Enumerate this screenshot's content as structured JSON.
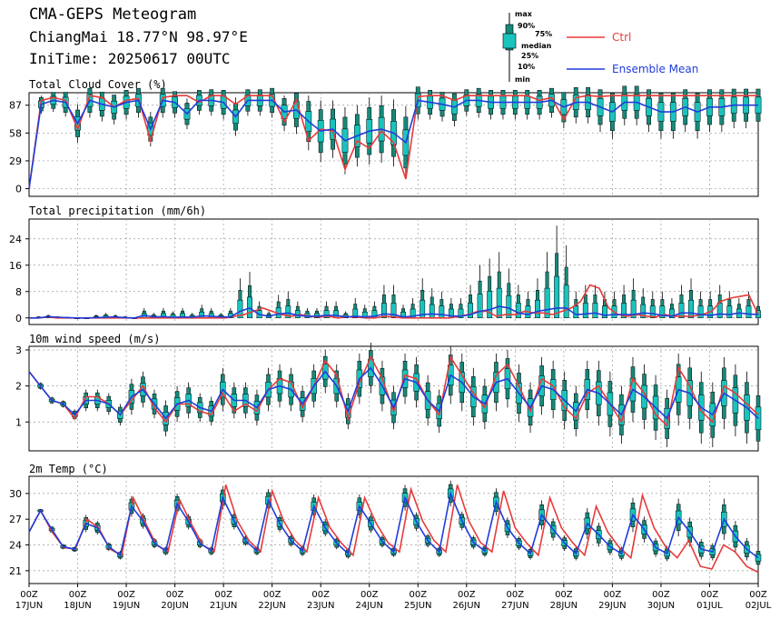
{
  "header": {
    "title": "CMA-GEPS Meteogram",
    "location": "ChiangMai 18.77°N 98.97°E",
    "init_time": "IniTime: 20250617 00UTC"
  },
  "legend": {
    "box_labels": [
      "max",
      "90%",
      "75%",
      "median",
      "25%",
      "10%",
      "min"
    ],
    "ctrl": "Ctrl",
    "mean": "Ensemble Mean"
  },
  "colors": {
    "ctrl": "#e83a3a",
    "mean": "#1f3ddb",
    "box": "#168a7a",
    "box_inner": "#19c4be"
  },
  "x_ticks": [
    {
      "top": "00Z",
      "bottom": "17JUN"
    },
    {
      "top": "00Z",
      "bottom": "18JUN"
    },
    {
      "top": "00Z",
      "bottom": "19JUN"
    },
    {
      "top": "00Z",
      "bottom": "20JUN"
    },
    {
      "top": "00Z",
      "bottom": "21JUN"
    },
    {
      "top": "00Z",
      "bottom": "22JUN"
    },
    {
      "top": "00Z",
      "bottom": "23JUN"
    },
    {
      "top": "00Z",
      "bottom": "24JUN"
    },
    {
      "top": "00Z",
      "bottom": "25JUN"
    },
    {
      "top": "00Z",
      "bottom": "26JUN"
    },
    {
      "top": "00Z",
      "bottom": "27JUN"
    },
    {
      "top": "00Z",
      "bottom": "28JUN"
    },
    {
      "top": "00Z",
      "bottom": "29JUN"
    },
    {
      "top": "00Z",
      "bottom": "30JUN"
    },
    {
      "top": "00Z",
      "bottom": "01JUL"
    },
    {
      "top": "00Z",
      "bottom": "02JUL"
    }
  ],
  "chart_data": [
    {
      "type": "box-line",
      "title": "Total Cloud Cover (%)",
      "ylim": [
        -8,
        100
      ],
      "yticks": [
        0,
        29,
        58,
        87
      ],
      "x_unit": "hours since 17JUN 00Z (6-hourly steps)",
      "ctrl": [
        0,
        92,
        95,
        92,
        62,
        97,
        95,
        85,
        92,
        94,
        50,
        95,
        97,
        97,
        90,
        97,
        97,
        88,
        97,
        97,
        97,
        70,
        92,
        50,
        62,
        60,
        20,
        50,
        42,
        60,
        48,
        10,
        96,
        97,
        97,
        92,
        97,
        97,
        97,
        97,
        97,
        97,
        92,
        95,
        72,
        95,
        97,
        96,
        97,
        97,
        97,
        97,
        97,
        97,
        97,
        97,
        97,
        97,
        97,
        97,
        97
      ],
      "mean": [
        0,
        88,
        92,
        90,
        68,
        92,
        88,
        85,
        90,
        92,
        62,
        92,
        90,
        78,
        92,
        92,
        90,
        75,
        92,
        92,
        92,
        80,
        82,
        70,
        60,
        62,
        50,
        55,
        60,
        62,
        58,
        48,
        92,
        90,
        88,
        85,
        92,
        92,
        90,
        90,
        90,
        90,
        90,
        92,
        85,
        90,
        90,
        85,
        80,
        90,
        90,
        85,
        80,
        80,
        85,
        80,
        85,
        85,
        87,
        87,
        87
      ],
      "median": [
        0,
        90,
        93,
        92,
        70,
        92,
        90,
        87,
        90,
        93,
        65,
        93,
        92,
        80,
        93,
        93,
        91,
        78,
        93,
        93,
        92,
        82,
        83,
        72,
        62,
        63,
        52,
        56,
        62,
        63,
        60,
        50,
        93,
        91,
        89,
        86,
        93,
        93,
        91,
        91,
        91,
        91,
        91,
        93,
        86,
        91,
        91,
        87,
        82,
        91,
        91,
        86,
        82,
        82,
        86,
        82,
        86,
        86,
        88,
        88,
        88
      ],
      "spread": [
        0,
        10,
        12,
        15,
        20,
        18,
        18,
        18,
        18,
        18,
        18,
        18,
        16,
        16,
        15,
        16,
        18,
        20,
        16,
        16,
        18,
        20,
        25,
        30,
        32,
        30,
        35,
        32,
        35,
        35,
        35,
        38,
        20,
        18,
        18,
        20,
        16,
        18,
        18,
        18,
        18,
        18,
        18,
        18,
        22,
        22,
        22,
        26,
        28,
        24,
        24,
        26,
        28,
        28,
        26,
        28,
        26,
        26,
        24,
        24,
        24
      ]
    },
    {
      "type": "box-line",
      "title": "Total precipitation (mm/6h)",
      "ylim": [
        -2,
        30
      ],
      "yticks": [
        0,
        8,
        16,
        24
      ],
      "ctrl": [
        0,
        0,
        0.3,
        0,
        0,
        0,
        0,
        0,
        0,
        0,
        0,
        0,
        0,
        0,
        0,
        0,
        0,
        0,
        0,
        0,
        0,
        0,
        0.5,
        1,
        2,
        3,
        2,
        1,
        0.5,
        1,
        0.5,
        0.3,
        0.5,
        0,
        0.3,
        0.3,
        0,
        0,
        0.5,
        0.3,
        0,
        0,
        0,
        0,
        0,
        0,
        0.5,
        1,
        2,
        2,
        0.5,
        1,
        1,
        2,
        1.5,
        1.5,
        1,
        2,
        3,
        5,
        10,
        9,
        3,
        1,
        0.5,
        1,
        0.5,
        0.3,
        1,
        0.5,
        0.5,
        0.5,
        1,
        2,
        5,
        6,
        6.5,
        7,
        1
      ],
      "mean": [
        0,
        0,
        0.4,
        0.2,
        0.1,
        0,
        0,
        0.1,
        0.2,
        0.3,
        0.1,
        0,
        0.8,
        0.3,
        0.4,
        0.2,
        0.3,
        0.2,
        0.6,
        0.5,
        0.3,
        0.3,
        2,
        3,
        1,
        0.5,
        1.2,
        1.5,
        0.8,
        0.5,
        0.5,
        0.8,
        0.8,
        0.3,
        0.5,
        0.3,
        0.5,
        1.2,
        1,
        0.3,
        0.5,
        1,
        1.2,
        1,
        0.6,
        0.5,
        1,
        2,
        2.5,
        3.5,
        3,
        1.5,
        1,
        2,
        2.5,
        3,
        3,
        1,
        1.2,
        1.5,
        0.8,
        1,
        1,
        1,
        1.5,
        1.3,
        0.8,
        0.5,
        1.5,
        1.5,
        1,
        0.8,
        1.2,
        1,
        1.5,
        1.2,
        1
      ],
      "hi": [
        0,
        0.5,
        1,
        0.5,
        0.3,
        0,
        0,
        1,
        1.5,
        1,
        0.5,
        0,
        3,
        1.5,
        3,
        2,
        3,
        1.5,
        4,
        3,
        1.5,
        3,
        12,
        14,
        5,
        2,
        7,
        8,
        5,
        3,
        3,
        5,
        5,
        2,
        6,
        4,
        5,
        10,
        10,
        4,
        6,
        12,
        9,
        8,
        6,
        6,
        10,
        16,
        18,
        20,
        15,
        10,
        8,
        12,
        20,
        28,
        22,
        8,
        10,
        10,
        8,
        8,
        10,
        12,
        9,
        8,
        8,
        6,
        10,
        12,
        8,
        8,
        10,
        8,
        6,
        8,
        5
      ],
      "max_val": [
        0,
        0.5,
        1,
        0.5,
        0.3,
        0,
        0,
        1,
        1.5,
        1,
        0.5,
        0,
        3,
        1.5,
        3,
        2,
        3,
        1.5,
        4,
        3,
        1.5,
        3,
        12,
        14,
        5,
        2,
        7,
        8,
        5,
        3,
        3,
        5,
        5,
        2,
        6,
        4,
        5,
        10,
        10,
        4,
        6,
        12,
        9,
        8,
        6,
        6,
        10,
        16,
        18,
        20,
        15,
        10,
        8,
        12,
        20,
        28,
        22,
        8,
        10,
        10,
        8,
        8,
        10,
        12,
        9,
        8,
        8,
        6,
        10,
        12,
        8,
        8,
        10,
        8,
        6,
        8,
        5
      ]
    },
    {
      "type": "box-line",
      "title": "10m wind speed (m/s)",
      "ylim": [
        0.2,
        3.1
      ],
      "yticks": [
        1,
        2,
        3
      ],
      "ctrl": [
        2.4,
        2,
        1.6,
        1.5,
        1.1,
        1.7,
        1.7,
        1.5,
        1.2,
        1.6,
        2,
        1.4,
        1.0,
        1.5,
        1.5,
        1.3,
        1.2,
        1.8,
        1.3,
        1.5,
        1.3,
        1.9,
        2.2,
        2.1,
        1.4,
        2,
        2.7,
        2.3,
        1.1,
        2.1,
        2.8,
        2.2,
        1.3,
        2.3,
        2.2,
        1.6,
        1.2,
        2.8,
        2.3,
        1.8,
        1.4,
        2.3,
        2.6,
        2.0,
        1.3,
        2.2,
        2.0,
        1.4,
        1.1,
        1.8,
        2.0,
        1.5,
        1.0,
        2.2,
        1.8,
        1.2,
        0.9,
        2.5,
        2.0,
        1.3,
        1.0,
        2.0,
        1.8,
        1.5,
        1.2
      ],
      "mean": [
        2.4,
        2,
        1.6,
        1.5,
        1.2,
        1.6,
        1.6,
        1.5,
        1.2,
        1.7,
        1.9,
        1.5,
        1.1,
        1.5,
        1.6,
        1.4,
        1.3,
        1.9,
        1.6,
        1.6,
        1.4,
        1.9,
        2.0,
        1.9,
        1.5,
        2.0,
        2.4,
        2.0,
        1.3,
        2.2,
        2.5,
        2.0,
        1.4,
        2.2,
        2.1,
        1.6,
        1.3,
        2.3,
        2.1,
        1.7,
        1.5,
        2.1,
        2.2,
        1.8,
        1.4,
        2.0,
        1.9,
        1.6,
        1.3,
        1.9,
        1.8,
        1.5,
        1.2,
        1.9,
        1.7,
        1.4,
        1.1,
        1.9,
        1.8,
        1.4,
        1.2,
        1.8,
        1.6,
        1.4,
        1.1
      ],
      "spread": [
        0,
        0.1,
        0.1,
        0.1,
        0.15,
        0.3,
        0.3,
        0.3,
        0.3,
        0.5,
        0.5,
        0.4,
        0.5,
        0.5,
        0.5,
        0.4,
        0.4,
        0.6,
        0.5,
        0.5,
        0.5,
        0.6,
        0.6,
        0.6,
        0.5,
        0.6,
        0.6,
        0.6,
        0.5,
        0.7,
        0.7,
        0.7,
        0.6,
        0.7,
        0.7,
        0.7,
        0.6,
        0.8,
        0.8,
        0.8,
        0.7,
        0.8,
        0.8,
        0.8,
        0.7,
        0.8,
        0.8,
        0.8,
        0.7,
        0.8,
        0.9,
        0.9,
        0.8,
        0.9,
        0.9,
        0.9,
        0.8,
        1.0,
        1.0,
        1.0,
        0.9,
        1.0,
        1.0,
        1.0,
        0.9
      ]
    },
    {
      "type": "box-line",
      "title": "2m Temp (°C)",
      "ylim": [
        19.5,
        32
      ],
      "yticks": [
        21,
        24,
        27,
        30
      ],
      "ctrl": [
        25.5,
        28,
        25.5,
        23.7,
        23.5,
        27,
        26,
        23.5,
        22.8,
        29.5,
        26.7,
        24,
        23.2,
        29.3,
        26.5,
        24,
        23.2,
        31,
        26.8,
        24.5,
        23.2,
        30.3,
        26.8,
        24.5,
        23.2,
        29.5,
        26,
        24.2,
        22.8,
        29.5,
        26.5,
        24.3,
        23.2,
        30.5,
        26.8,
        24.5,
        23.2,
        31,
        26.8,
        24.3,
        23.2,
        30.3,
        26,
        24.2,
        22.8,
        29.5,
        26,
        24.2,
        22.8,
        28.5,
        25.5,
        23.7,
        22.5,
        29.8,
        26,
        23.8,
        22.5,
        24.5,
        21.5,
        21.2,
        24,
        23.2,
        21.5,
        20.8
      ],
      "mean": [
        25.5,
        28,
        25.8,
        23.8,
        23.5,
        26.5,
        26,
        23.8,
        22.8,
        28.5,
        26.8,
        24.2,
        23.3,
        28.8,
        26.7,
        24.2,
        23.3,
        29.5,
        26.8,
        24.5,
        23.3,
        29.2,
        26.5,
        24.5,
        23.3,
        28.5,
        26,
        24.2,
        23,
        28.5,
        26.5,
        24.4,
        23.2,
        29.5,
        26.7,
        24.5,
        23.2,
        30,
        26.8,
        24.3,
        23.3,
        29,
        26,
        24.2,
        23,
        27.5,
        25.8,
        24.2,
        23,
        26.5,
        25.2,
        23.8,
        23,
        27.5,
        25.8,
        23.7,
        23,
        27.2,
        25.5,
        23.5,
        23.2,
        27,
        25,
        23.5,
        22.5
      ],
      "spread": [
        0,
        0.2,
        0.4,
        0.3,
        0.3,
        1,
        0.8,
        0.5,
        0.5,
        1.2,
        0.9,
        0.6,
        0.5,
        1.2,
        0.9,
        0.6,
        0.5,
        1.3,
        1,
        0.6,
        0.5,
        1.3,
        1,
        0.7,
        0.6,
        1.4,
        1,
        0.7,
        0.6,
        1.4,
        1.1,
        0.7,
        0.6,
        1.5,
        1.1,
        0.8,
        0.6,
        1.5,
        1.1,
        0.8,
        0.7,
        1.6,
        1.2,
        0.8,
        0.7,
        1.7,
        1.3,
        0.9,
        0.8,
        1.8,
        1.4,
        1,
        0.8,
        2,
        1.5,
        1.1,
        0.9,
        2.2,
        1.7,
        1.2,
        1,
        2.4,
        1.8,
        1.3,
        1.1
      ]
    }
  ]
}
